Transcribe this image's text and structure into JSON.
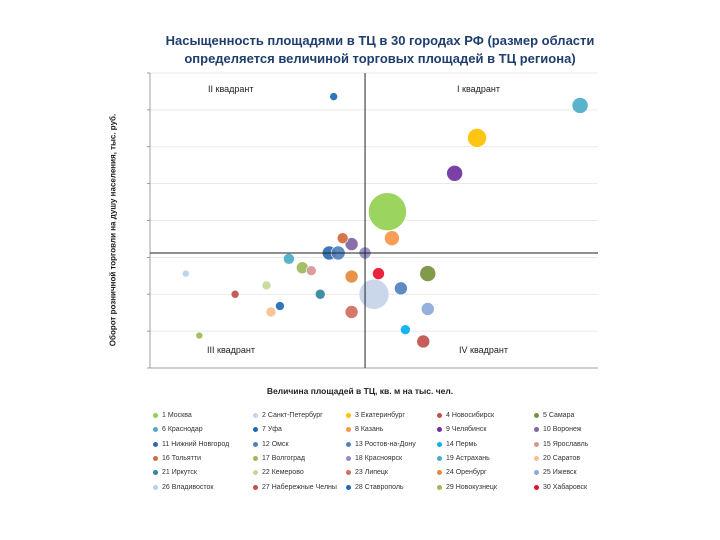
{
  "header": {
    "title_line1": "Насыщенность площадями в ТЦ в 30 городах РФ (размер области",
    "title_line2": "определяется величиной торговых площадей в ТЦ региона)"
  },
  "chart_data": {
    "type": "scatter",
    "bubble": true,
    "title": "Насыщенность площадями в ТЦ в 30 городах РФ (размер области определяется величиной торговых площадей в ТЦ региона)",
    "xlabel": "Величина площадей в ТЦ, кв. м на тыс. чел.",
    "ylabel": "Оборот розничной торговли на душу населения, тыс. руб.",
    "xlim": [
      0,
      100
    ],
    "ylim": [
      0,
      100
    ],
    "grid": "horizontal",
    "quadrant_divider": {
      "x": 48,
      "y": 39
    },
    "quadrants": {
      "q1": "I квадрант",
      "q2": "II квадрант",
      "q3": "III квадрант",
      "q4": "IV квадрант"
    },
    "legend_position": "bottom",
    "points": [
      {
        "label": "1 Москва",
        "x": 53,
        "y": 53,
        "size": 34,
        "color": "#92d050"
      },
      {
        "label": "2 Санкт-Петербург",
        "x": 50,
        "y": 25,
        "size": 26,
        "color": "#c5d3e8"
      },
      {
        "label": "3 Екатеринбург",
        "x": 73,
        "y": 78,
        "size": 15,
        "color": "#ffc000"
      },
      {
        "label": "4 Новосибирск",
        "x": 61,
        "y": 9,
        "size": 9,
        "color": "#c0504d"
      },
      {
        "label": "5 Самара",
        "x": 62,
        "y": 32,
        "size": 12,
        "color": "#76923c"
      },
      {
        "label": "6 Краснодар",
        "x": 96,
        "y": 89,
        "size": 12,
        "color": "#4bacc6"
      },
      {
        "label": "7 Уфа",
        "x": 41,
        "y": 92,
        "size": 4,
        "color": "#1f69b4"
      },
      {
        "label": "8 Казань",
        "x": 54,
        "y": 44,
        "size": 11,
        "color": "#f79646"
      },
      {
        "label": "9 Челябинск",
        "x": 68,
        "y": 66,
        "size": 12,
        "color": "#7030a0"
      },
      {
        "label": "10 Воронеж",
        "x": 45,
        "y": 42,
        "size": 9,
        "color": "#8064a2"
      },
      {
        "label": "11 Нижний Новгород",
        "x": 40,
        "y": 39,
        "size": 10,
        "color": "#2e6bb0"
      },
      {
        "label": "12 Омск",
        "x": 56,
        "y": 27,
        "size": 9,
        "color": "#4f81bd"
      },
      {
        "label": "13 Ростов-на-Дону",
        "x": 42,
        "y": 39,
        "size": 10,
        "color": "#4f81bd"
      },
      {
        "label": "14 Пермь",
        "x": 57,
        "y": 13,
        "size": 6,
        "color": "#00b0f0"
      },
      {
        "label": "15 Ярославль",
        "x": 36,
        "y": 33,
        "size": 6,
        "color": "#d99694"
      },
      {
        "label": "16 Тольятти",
        "x": 43,
        "y": 44,
        "size": 7,
        "color": "#d16b3c"
      },
      {
        "label": "17 Волгоград",
        "x": 34,
        "y": 34,
        "size": 8,
        "color": "#9bbb59"
      },
      {
        "label": "18 Красноярск",
        "x": 48,
        "y": 39,
        "size": 8,
        "color": "#8e8ec7"
      },
      {
        "label": "19 Астрахань",
        "x": 31,
        "y": 37,
        "size": 7,
        "color": "#4bacc6"
      },
      {
        "label": "20 Саратов",
        "x": 27,
        "y": 19,
        "size": 6,
        "color": "#fabf8f"
      },
      {
        "label": "21 Иркутск",
        "x": 38,
        "y": 25,
        "size": 6,
        "color": "#31859c"
      },
      {
        "label": "22 Кемерово",
        "x": 26,
        "y": 28,
        "size": 5,
        "color": "#c4d79b"
      },
      {
        "label": "23 Липецк",
        "x": 45,
        "y": 19,
        "size": 9,
        "color": "#d16b5e"
      },
      {
        "label": "24 Оренбург",
        "x": 45,
        "y": 31,
        "size": 9,
        "color": "#e38a3a"
      },
      {
        "label": "25 Ижевск",
        "x": 62,
        "y": 20,
        "size": 9,
        "color": "#8da9db"
      },
      {
        "label": "26 Владивосток",
        "x": 8,
        "y": 32,
        "size": 3,
        "color": "#b7cfe8"
      },
      {
        "label": "27 Набережные Челны",
        "x": 19,
        "y": 25,
        "size": 4,
        "color": "#c0504d"
      },
      {
        "label": "28 Ставрополь",
        "x": 29,
        "y": 21,
        "size": 5,
        "color": "#1f69b4"
      },
      {
        "label": "29 Новокузнецк",
        "x": 11,
        "y": 11,
        "size": 3,
        "color": "#9bbb59"
      },
      {
        "label": "30 Хабаровск",
        "x": 51,
        "y": 32,
        "size": 8,
        "color": "#e8112d"
      }
    ]
  }
}
